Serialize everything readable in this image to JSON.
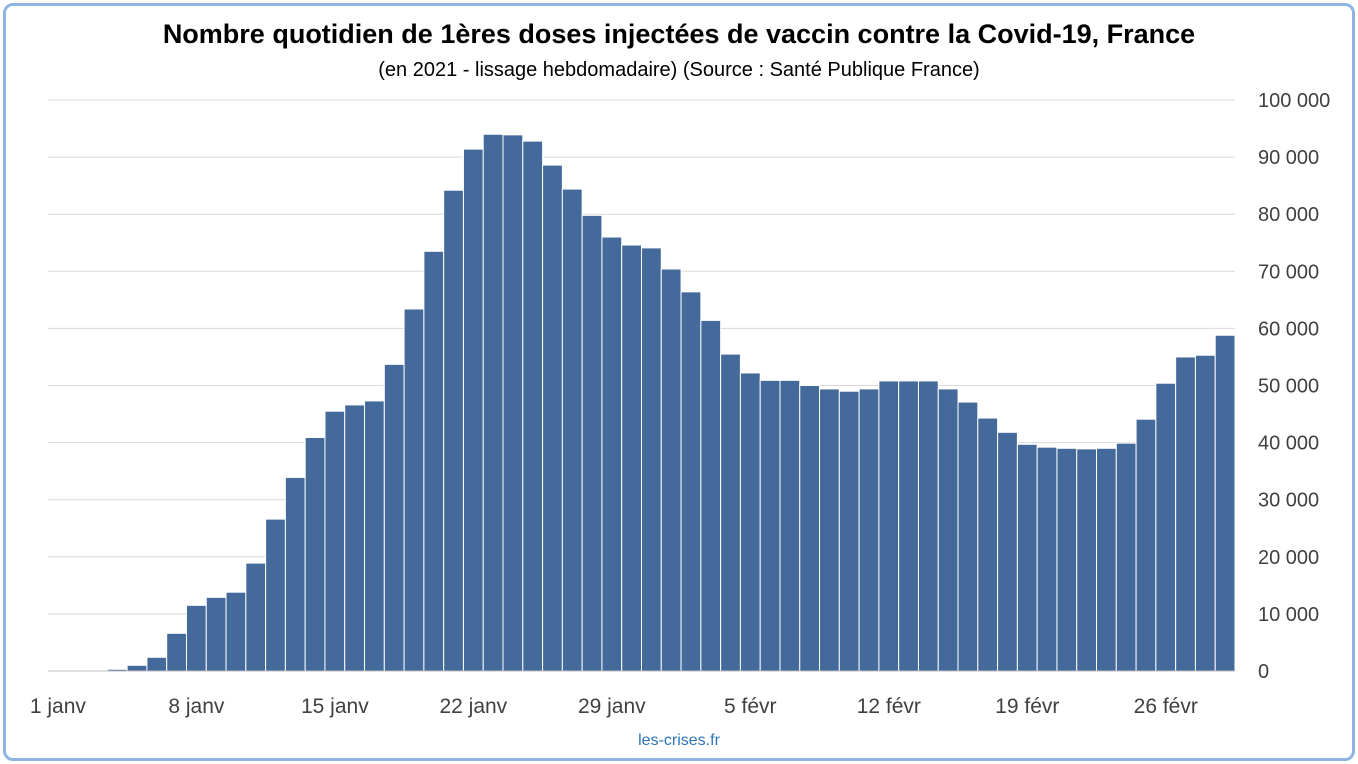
{
  "chart_data": {
    "type": "bar",
    "title": "Nombre quotidien de 1ères doses injectées de vaccin contre la Covid-19, France",
    "subtitle": "(en 2021 - lissage hebdomadaire) (Source : Santé Publique France)",
    "x_tick_labels": [
      "1 janv",
      "8 janv",
      "15 janv",
      "22 janv",
      "29 janv",
      "5 févr",
      "12 févr",
      "19 févr",
      "26 févr"
    ],
    "values": [
      0,
      0,
      0,
      300,
      1000,
      2400,
      6600,
      11500,
      12900,
      13800,
      18900,
      26600,
      33900,
      40900,
      45500,
      46600,
      47300,
      53700,
      63400,
      73500,
      84200,
      91400,
      94000,
      93900,
      92800,
      88600,
      84400,
      79800,
      76000,
      74600,
      74100,
      70400,
      66400,
      61400,
      55500,
      52200,
      50900,
      50900,
      50000,
      49400,
      49000,
      49400,
      50800,
      50800,
      50800,
      49400,
      47100,
      44300,
      41800,
      39700,
      39200,
      39000,
      38900,
      39000,
      39900,
      44100,
      50400,
      55000,
      55300,
      58800
    ],
    "ylim": [
      0,
      100000
    ],
    "y_tick_labels": [
      "0",
      "10 000",
      "20 000",
      "30 000",
      "40 000",
      "50 000",
      "60 000",
      "70 000",
      "80 000",
      "90 000",
      "100 000"
    ],
    "y_axis_on_right": true,
    "horizontal_grid": true,
    "bar_color": "#44699b"
  },
  "watermark": "les-crises.fr"
}
